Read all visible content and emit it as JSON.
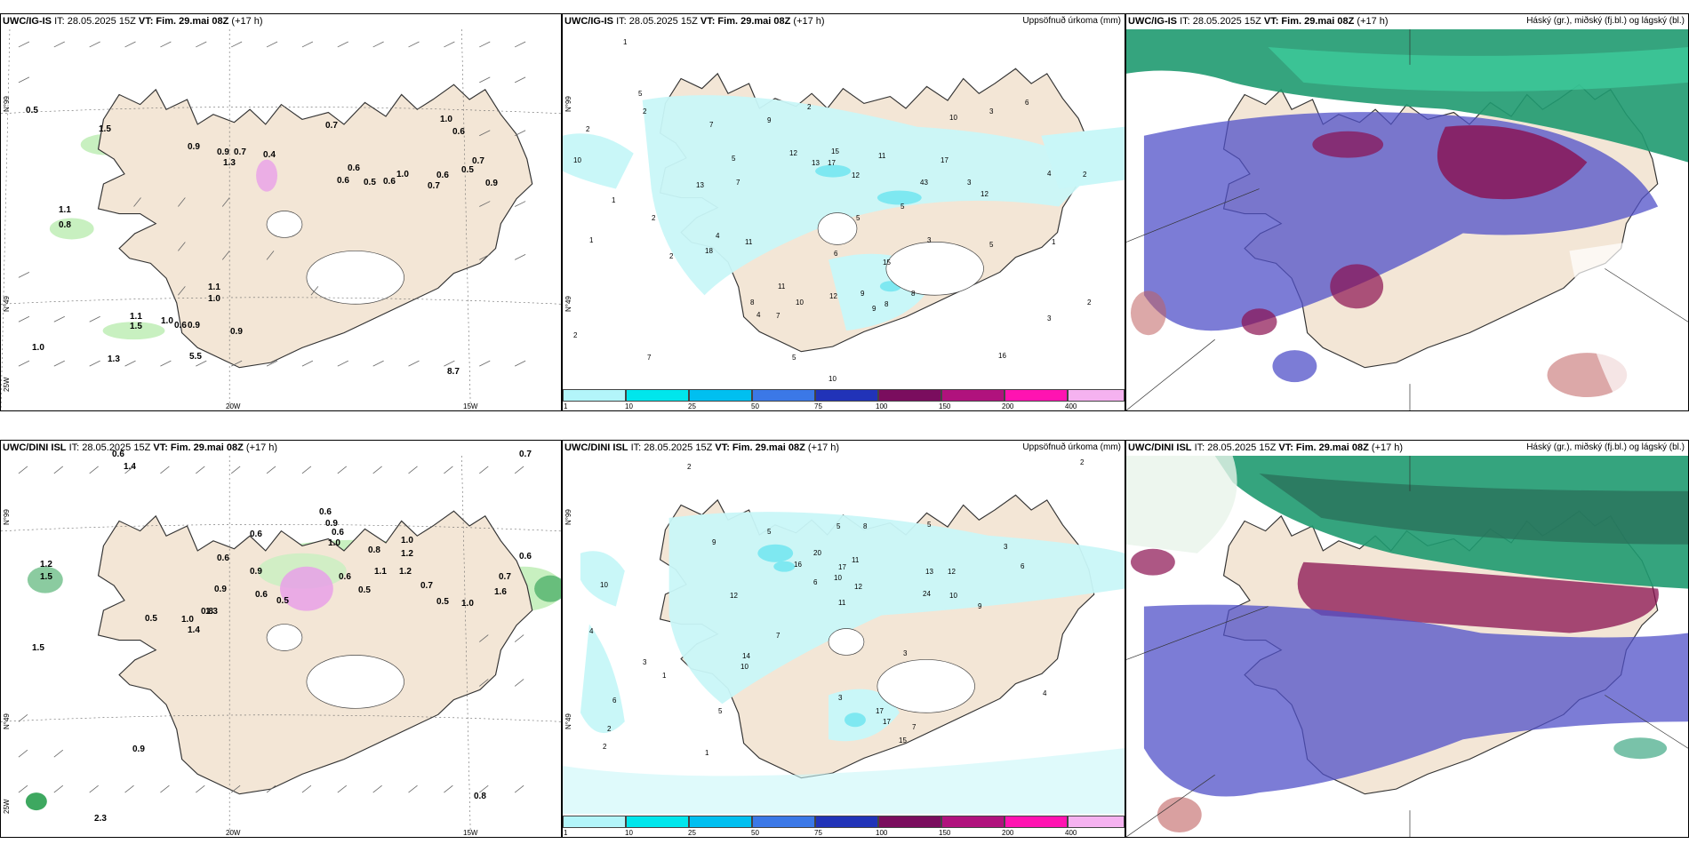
{
  "panels": [
    {
      "id": "p1",
      "model": "UWC/IG-IS",
      "it": "IT: 28.05.2025 15Z",
      "vt": "VT: Fim. 29.mai 08Z",
      "lead": "(+17 h)",
      "right_title": "",
      "values": [
        "0.5",
        "1.5",
        "0.9",
        "0.9",
        "0.7",
        "1.3",
        "0.4",
        "0.7",
        "0.6",
        "0.6",
        "0.5",
        "1.0",
        "0.7",
        "0.6",
        "0.5",
        "0.9",
        "0.7",
        "1.0",
        "0.6",
        "0.6",
        "1.1",
        "0.8",
        "1.1",
        "1.0",
        "1.1",
        "1.5",
        "1.0",
        "0.6",
        "0.9",
        "0.9",
        "1.0",
        "1.3",
        "5.5",
        "8.7"
      ],
      "axis": [
        "N°99",
        "N°49",
        "25W",
        "20W",
        "15W"
      ]
    },
    {
      "id": "p2",
      "model": "UWC/IG-IS",
      "it": "IT: 28.05.2025 15Z",
      "vt": "VT: Fim. 29.mai 08Z",
      "lead": "(+17 h)",
      "right_title": "Uppsöfnuð úrkoma (mm)",
      "values": [
        "1",
        "2",
        "10",
        "5",
        "2",
        "7",
        "9",
        "2",
        "12",
        "13",
        "17",
        "15",
        "12",
        "11",
        "17",
        "43",
        "12",
        "5",
        "3",
        "6",
        "10",
        "3",
        "2",
        "4",
        "13",
        "7",
        "5",
        "4",
        "11",
        "18",
        "2",
        "11",
        "9",
        "6",
        "15",
        "12",
        "9",
        "8",
        "10",
        "7",
        "8",
        "4",
        "10",
        "5",
        "16",
        "7",
        "2",
        "2",
        "3",
        "1",
        "1",
        "1",
        "2",
        "5",
        "8",
        "3",
        "5"
      ],
      "axis": [
        "N°99",
        "N°49"
      ]
    },
    {
      "id": "p3",
      "model": "UWC/IG-IS",
      "it": "IT: 28.05.2025 15Z",
      "vt": "VT: Fim. 29.mai 08Z",
      "lead": "(+17 h)",
      "right_title": "Háský (gr.), miðský (fj.bl.) og lágský (bl.)"
    },
    {
      "id": "p4",
      "model": "UWC/DINI ISL",
      "it": "IT: 28.05.2025 15Z",
      "vt": "VT: Fim. 29.mai 08Z",
      "lead": "(+17 h)",
      "right_title": "",
      "values": [
        "0.6",
        "1.4",
        "0.7",
        "0.6",
        "0.9",
        "0.6",
        "1.0",
        "0.6",
        "0.8",
        "1.0",
        "1.2",
        "0.6",
        "1.1",
        "1.2",
        "0.6",
        "0.5",
        "0.9",
        "0.5",
        "0.7",
        "0.5",
        "1.0",
        "0.6",
        "0.7",
        "1.2",
        "1.5",
        "0.6",
        "1.6",
        "0.9",
        "0.5",
        "0.8",
        "1.3",
        "1.0",
        "1.4",
        "1.5",
        "0.9",
        "2.3",
        "0.8"
      ],
      "axis": [
        "N°99",
        "N°49",
        "25W",
        "20W",
        "15W"
      ]
    },
    {
      "id": "p5",
      "model": "UWC/DINI ISL",
      "it": "IT: 28.05.2025 15Z",
      "vt": "VT: Fim. 29.mai 08Z",
      "lead": "(+17 h)",
      "right_title": "Uppsöfnuð úrkoma (mm)",
      "values": [
        "2",
        "10",
        "9",
        "5",
        "16",
        "20",
        "17",
        "11",
        "5",
        "8",
        "12",
        "10",
        "13",
        "12",
        "24",
        "10",
        "9",
        "6",
        "5",
        "3",
        "4",
        "14",
        "10",
        "7",
        "12",
        "11",
        "6",
        "3",
        "17",
        "17",
        "15",
        "3",
        "7",
        "4",
        "2",
        "1",
        "3",
        "6",
        "5",
        "2",
        "2",
        "1"
      ],
      "axis": [
        "N°99",
        "N°49"
      ]
    },
    {
      "id": "p6",
      "model": "UWC/DINI ISL",
      "it": "IT: 28.05.2025 15Z",
      "vt": "VT: Fim. 29.mai 08Z",
      "lead": "(+17 h)",
      "right_title": "Háský (gr.), miðský (fj.bl.) og lágský (bl.)"
    }
  ],
  "legend": {
    "labels": [
      "1",
      "10",
      "25",
      "50",
      "75",
      "100",
      "150",
      "200",
      "400"
    ],
    "colors": [
      "#b3f5fa",
      "#00e6ec",
      "#00bff0",
      "#3b78e7",
      "#2133b8",
      "#7a0d5e",
      "#b0127d",
      "#ff13b1",
      "#f5b2f0"
    ]
  },
  "colors": {
    "land": "#f3e6d6",
    "precip_light": "#c9f7f8",
    "precip_mid": "#7ee8f1",
    "wind_precip_green": "#c8f0c0",
    "wind_precip_dark": "#3ea860",
    "snow_pink": "#e8a0e8",
    "high_cloud": "#1f9a70",
    "mid_cloud": "#8a1050",
    "low_cloud": "#5050c8"
  }
}
